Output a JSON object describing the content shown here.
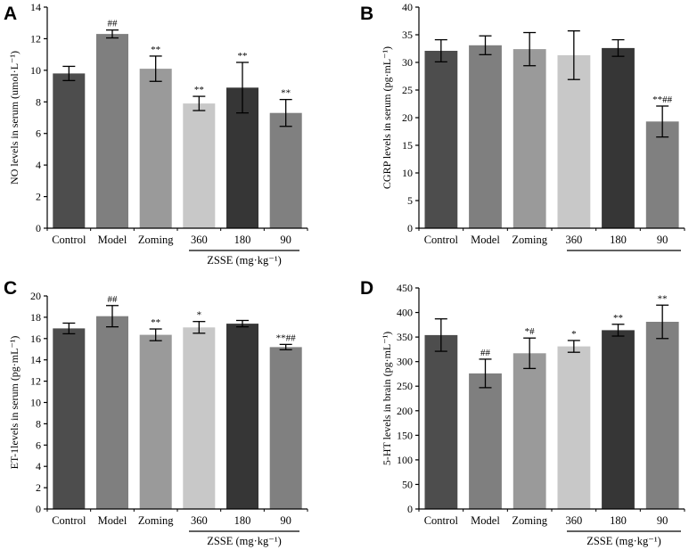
{
  "colors": {
    "Control": "#4d4d4d",
    "Model": "#7f7f7f",
    "Zoming": "#9a9a9a",
    "360": "#c8c8c8",
    "180": "#363636",
    "90": "#808080"
  },
  "chart_data": [
    {
      "type": "bar",
      "panel": "A",
      "categories": [
        "Control",
        "Model",
        "Zoming",
        "360",
        "180",
        "90"
      ],
      "values": [
        9.8,
        12.3,
        10.1,
        7.9,
        8.9,
        7.3
      ],
      "errors": [
        0.45,
        0.25,
        0.8,
        0.45,
        1.6,
        0.85
      ],
      "sig_labels": [
        "",
        "##",
        "**",
        "**",
        "**",
        "**"
      ],
      "ylabel": "NO levels in serum (umol·L⁻¹)",
      "ylim": [
        0,
        14
      ],
      "yticks": [
        0,
        2,
        4,
        6,
        8,
        10,
        12,
        14
      ],
      "group_label": "ZSSE (mg·kg⁻¹)"
    },
    {
      "type": "bar",
      "panel": "B",
      "categories": [
        "Control",
        "Model",
        "Zoming",
        "360",
        "180",
        "90"
      ],
      "values": [
        32.1,
        33.1,
        32.4,
        31.3,
        32.6,
        19.3
      ],
      "errors": [
        2.0,
        1.7,
        3.0,
        4.4,
        1.5,
        2.8
      ],
      "sig_labels": [
        "",
        "",
        "",
        "",
        "",
        "**##"
      ],
      "ylabel": "CGRP levels in serum (pg·mL⁻¹)",
      "ylim": [
        0,
        40
      ],
      "yticks": [
        0,
        5,
        10,
        15,
        20,
        25,
        30,
        35,
        40
      ],
      "group_label": ""
    },
    {
      "type": "bar",
      "panel": "C",
      "categories": [
        "Control",
        "Model",
        "Zoming",
        "360",
        "180",
        "90"
      ],
      "values": [
        16.95,
        18.1,
        16.35,
        17.05,
        17.4,
        15.2
      ],
      "errors": [
        0.5,
        1.0,
        0.55,
        0.55,
        0.3,
        0.25
      ],
      "sig_labels": [
        "",
        "##",
        "**",
        "*",
        "",
        "**##"
      ],
      "ylabel": "ET-1levels in serum (pg·mL⁻¹)",
      "ylim": [
        0,
        20
      ],
      "yticks": [
        0,
        2,
        4,
        6,
        8,
        10,
        12,
        14,
        16,
        18,
        20
      ],
      "group_label": "ZSSE (mg·kg⁻¹)"
    },
    {
      "type": "bar",
      "panel": "D",
      "categories": [
        "Control",
        "Model",
        "Zoming",
        "360",
        "180",
        "90"
      ],
      "values": [
        354,
        276,
        317,
        331,
        364,
        381
      ],
      "errors": [
        33,
        29,
        31,
        12,
        12,
        34
      ],
      "sig_labels": [
        "",
        "##",
        "*#",
        "*",
        "**",
        "**"
      ],
      "ylabel": "5-HT levels in brain (pg·mL⁻¹)",
      "ylim": [
        0,
        450
      ],
      "yticks": [
        0,
        50,
        100,
        150,
        200,
        250,
        300,
        350,
        400,
        450
      ],
      "group_label": "ZSSE (mg·kg⁻¹)"
    }
  ]
}
